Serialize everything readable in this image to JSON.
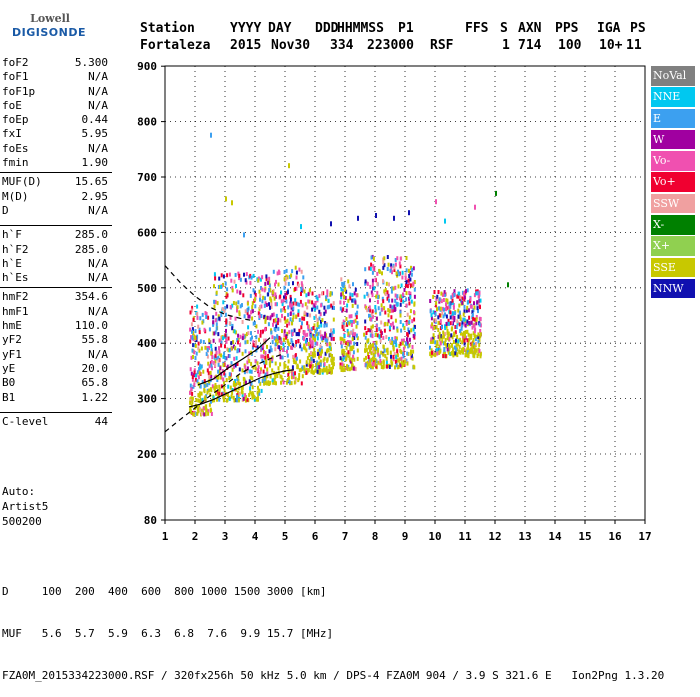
{
  "logo": {
    "top": "Lowell",
    "bottom": "DIGISONDE"
  },
  "header": {
    "labels": [
      "Station",
      "YYYY",
      "DAY",
      "DDD",
      "HHMMSS",
      "P1",
      "FFS",
      "S",
      "AXN",
      "PPS",
      "IGA",
      "PS"
    ],
    "values": [
      "Fortaleza",
      "2015",
      "Nov30",
      "334",
      "223000",
      "RSF",
      "",
      "1",
      "714",
      "100",
      "10+",
      "11"
    ]
  },
  "params": {
    "group1": [
      {
        "k": "foF2",
        "v": "5.300"
      },
      {
        "k": "foF1",
        "v": "N/A"
      },
      {
        "k": "foF1p",
        "v": "N/A"
      },
      {
        "k": "foE",
        "v": "N/A"
      },
      {
        "k": "foEp",
        "v": "0.44"
      },
      {
        "k": "fxI",
        "v": "5.95"
      },
      {
        "k": "foEs",
        "v": "N/A"
      },
      {
        "k": "fmin",
        "v": "1.90"
      }
    ],
    "group2": [
      {
        "k": "MUF(D)",
        "v": "15.65"
      },
      {
        "k": "M(D)",
        "v": "2.95"
      },
      {
        "k": "D",
        "v": "N/A"
      }
    ],
    "group3": [
      {
        "k": "h`F",
        "v": "285.0"
      },
      {
        "k": "h`F2",
        "v": "285.0"
      },
      {
        "k": "h`E",
        "v": "N/A"
      },
      {
        "k": "h`Es",
        "v": "N/A"
      }
    ],
    "group4": [
      {
        "k": "hmF2",
        "v": "354.6"
      },
      {
        "k": "hmF1",
        "v": "N/A"
      },
      {
        "k": "hmE",
        "v": "110.0"
      },
      {
        "k": "yF2",
        "v": "55.8"
      },
      {
        "k": "yF1",
        "v": "N/A"
      },
      {
        "k": "yE",
        "v": "20.0"
      },
      {
        "k": "B0",
        "v": "65.8"
      },
      {
        "k": "B1",
        "v": "1.22"
      }
    ],
    "group5": [
      {
        "k": "C-level",
        "v": "44"
      }
    ]
  },
  "auto": {
    "line1": "Auto:",
    "line2": "Artist5",
    "line3": "500200"
  },
  "legend": [
    {
      "label": "NoVal",
      "color": "#808080"
    },
    {
      "label": "NNE",
      "color": "#00c8f0"
    },
    {
      "label": "E",
      "color": "#3ca0f0"
    },
    {
      "label": "W",
      "color": "#a000a0"
    },
    {
      "label": "Vo-",
      "color": "#f050b0"
    },
    {
      "label": "Vo+",
      "color": "#f00030"
    },
    {
      "label": "SSW",
      "color": "#f0a0a0"
    },
    {
      "label": "X-",
      "color": "#008000"
    },
    {
      "label": "X+",
      "color": "#90d050"
    },
    {
      "label": "SSE",
      "color": "#c8c800"
    },
    {
      "label": "NNW",
      "color": "#1010b0"
    }
  ],
  "footer": {
    "line1": "D     100  200  400  600  800 1000 1500 3000 [km]",
    "line2": "MUF   5.6  5.7  5.9  6.3  6.8  7.6  9.9 15.7 [MHz]",
    "line3": "FZA0M_2015334223000.RSF / 320fx256h 50 kHz 5.0 km / DPS-4 FZA0M 904 / 3.9 S 321.6 E   Ion2Png 1.3.20"
  },
  "chart_data": {
    "type": "scatter",
    "title": "",
    "xlabel": "",
    "ylabel": "",
    "xlim": [
      1,
      17
    ],
    "ylim": [
      80,
      900
    ],
    "xticks": [
      "1",
      "2",
      "3",
      "4",
      "5",
      "6",
      "7",
      "8",
      "9",
      "10",
      "11",
      "12",
      "13",
      "14",
      "15",
      "16",
      "17"
    ],
    "yticks": [
      "80",
      "200",
      "300",
      "400",
      "500",
      "600",
      "700",
      "800",
      "900"
    ],
    "grid": true,
    "legend_position": "right",
    "echo_clusters": [
      {
        "freq_range": [
          1.8,
          2.6
        ],
        "height_range": [
          275,
          470
        ]
      },
      {
        "freq_range": [
          2.6,
          4.2
        ],
        "height_range": [
          300,
          530
        ]
      },
      {
        "freq_range": [
          4.2,
          5.6
        ],
        "height_range": [
          330,
          540
        ]
      },
      {
        "freq_range": [
          5.6,
          6.6
        ],
        "height_range": [
          350,
          500
        ]
      },
      {
        "freq_range": [
          6.8,
          7.4
        ],
        "height_range": [
          355,
          520
        ]
      },
      {
        "freq_range": [
          7.6,
          9.3
        ],
        "height_range": [
          360,
          560
        ]
      },
      {
        "freq_range": [
          9.8,
          11.5
        ],
        "height_range": [
          380,
          500
        ]
      }
    ],
    "scattered_points": [
      {
        "x": 2.5,
        "y": 780
      },
      {
        "x": 5.1,
        "y": 725
      },
      {
        "x": 3.0,
        "y": 665
      },
      {
        "x": 3.2,
        "y": 658
      },
      {
        "x": 3.6,
        "y": 600
      },
      {
        "x": 5.5,
        "y": 615
      },
      {
        "x": 6.5,
        "y": 620
      },
      {
        "x": 7.4,
        "y": 630
      },
      {
        "x": 8.0,
        "y": 635
      },
      {
        "x": 8.6,
        "y": 630
      },
      {
        "x": 9.1,
        "y": 640
      },
      {
        "x": 10.0,
        "y": 660
      },
      {
        "x": 10.3,
        "y": 625
      },
      {
        "x": 11.3,
        "y": 650
      },
      {
        "x": 12.0,
        "y": 675
      },
      {
        "x": 12.4,
        "y": 510
      }
    ],
    "curves": [
      {
        "style": "dashed",
        "x": [
          1.0,
          1.5,
          2.0,
          2.5,
          3.0,
          3.5,
          4.0,
          4.5,
          4.9
        ],
        "y": [
          240,
          262,
          283,
          305,
          325,
          345,
          360,
          372,
          380
        ]
      },
      {
        "style": "dashed",
        "x": [
          1.0,
          1.5,
          2.0,
          2.5,
          3.0,
          3.5,
          4.0
        ],
        "y": [
          540,
          510,
          485,
          465,
          452,
          445,
          440
        ]
      },
      {
        "style": "solid",
        "x": [
          1.8,
          2.2,
          2.6,
          3.0,
          3.4,
          3.8,
          4.2,
          4.6,
          5.0,
          5.3
        ],
        "y": [
          285,
          290,
          298,
          308,
          318,
          328,
          338,
          345,
          350,
          352
        ]
      },
      {
        "style": "solid",
        "x": [
          2.1,
          2.6,
          3.1,
          3.6,
          4.1,
          4.5
        ],
        "y": [
          325,
          335,
          355,
          372,
          390,
          410
        ]
      }
    ]
  }
}
